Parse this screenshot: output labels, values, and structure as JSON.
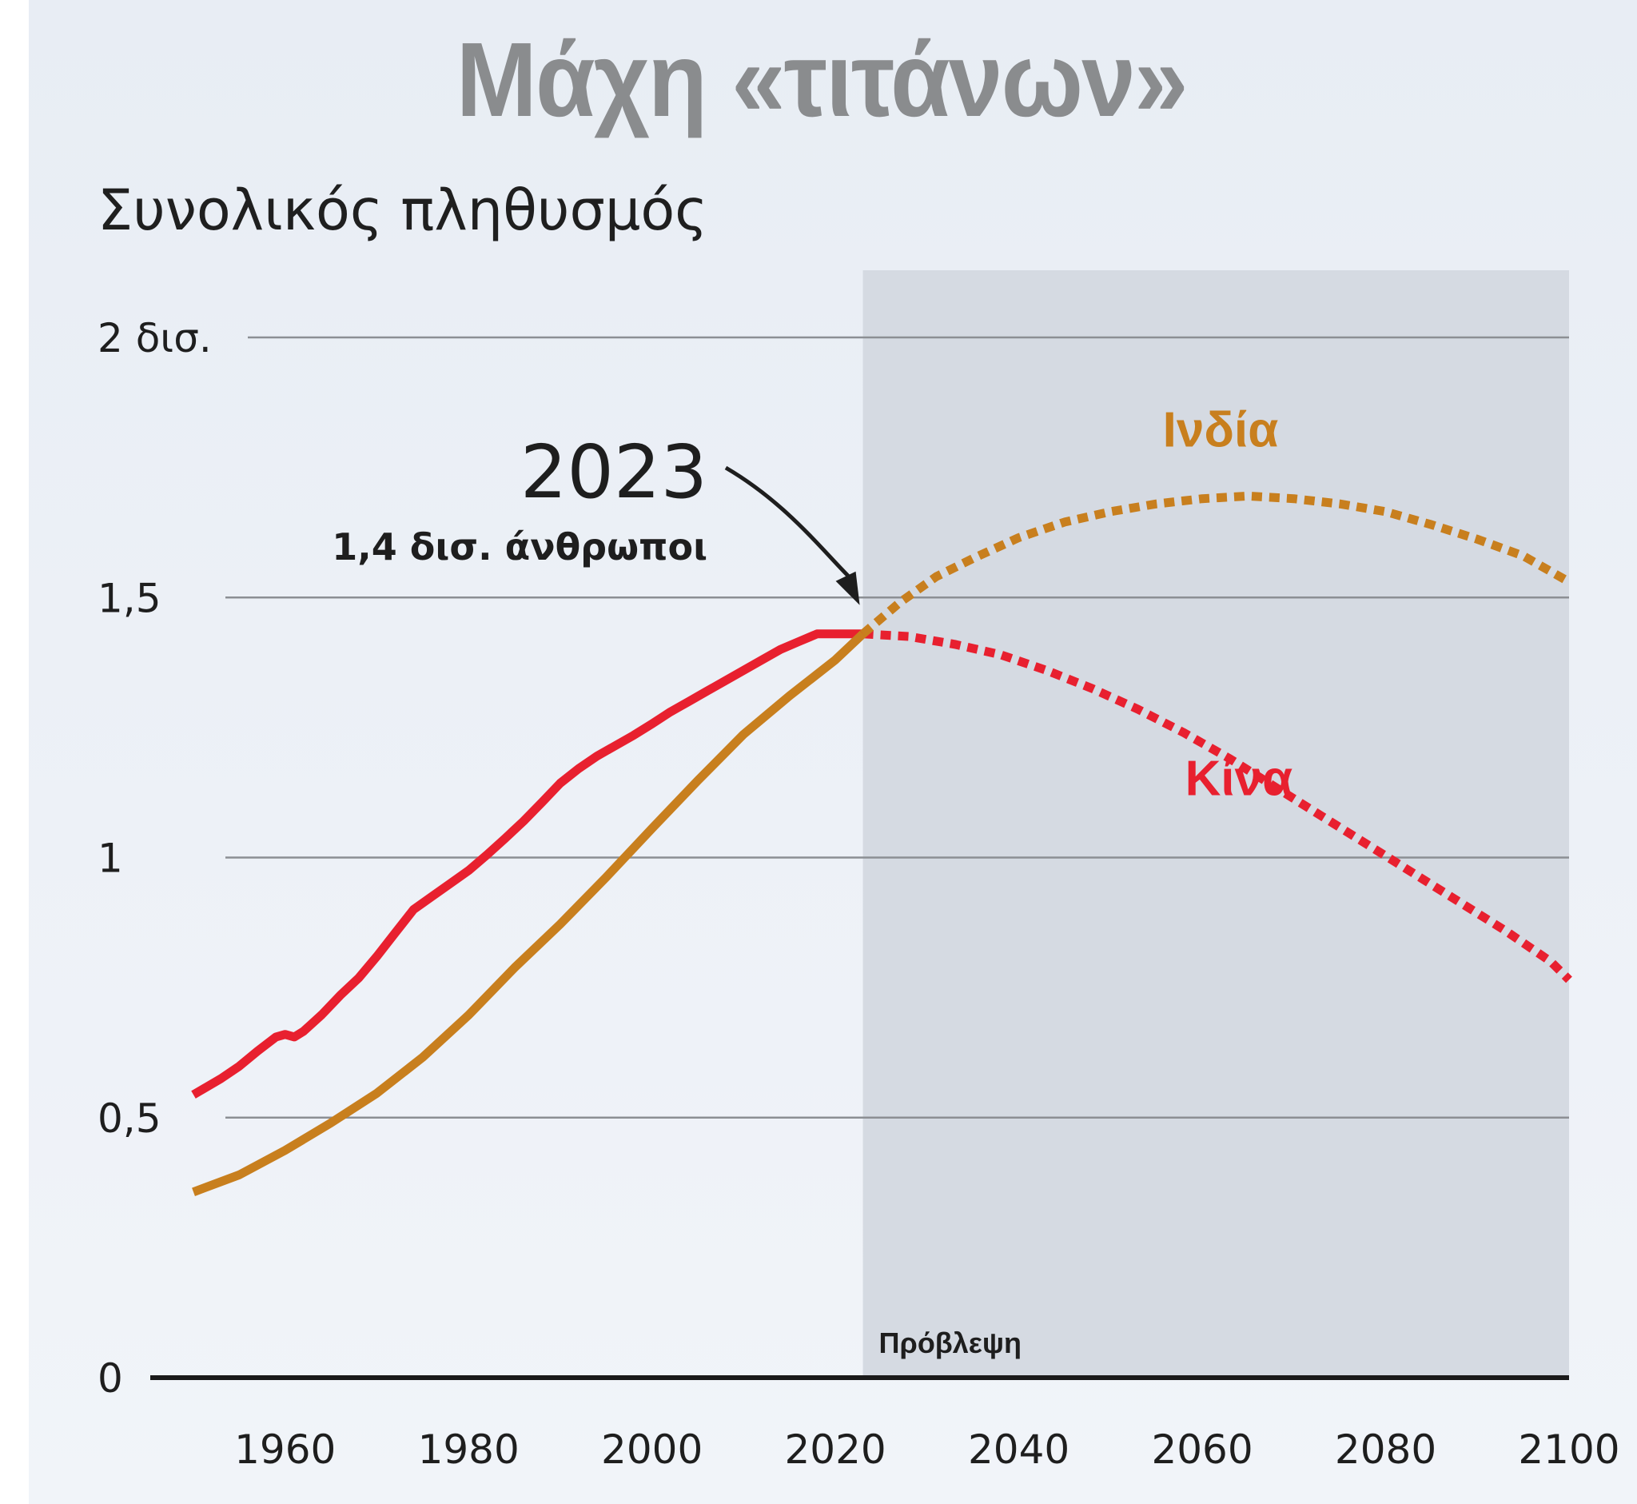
{
  "chart_data": {
    "type": "line",
    "title": "Μάχη «τιτάνων»",
    "subtitle": "Συνολικός πληθυσμός",
    "xlim": [
      1950,
      2100
    ],
    "ylim": [
      0,
      2
    ],
    "x_ticks": [
      1960,
      1980,
      2000,
      2020,
      2040,
      2060,
      2080,
      2100
    ],
    "y_ticks": [
      {
        "value": 0,
        "label": "0"
      },
      {
        "value": 0.5,
        "label": "0,5"
      },
      {
        "value": 1,
        "label": "1"
      },
      {
        "value": 1.5,
        "label": "1,5"
      },
      {
        "value": 2,
        "label": "2 δισ."
      }
    ],
    "forecast_start": 2023,
    "forecast_label": "Πρόβλεψη",
    "annotation": {
      "year_label": "2023",
      "text": "1,4 δισ. άνθρωποι",
      "x": 2023,
      "y": 1.43
    },
    "series": [
      {
        "name": "Κίνα",
        "color": "#e8202f",
        "historical": [
          [
            1950,
            0.544
          ],
          [
            1953,
            0.575
          ],
          [
            1955,
            0.599
          ],
          [
            1957,
            0.628
          ],
          [
            1959,
            0.655
          ],
          [
            1960,
            0.66
          ],
          [
            1961,
            0.655
          ],
          [
            1962,
            0.666
          ],
          [
            1964,
            0.698
          ],
          [
            1966,
            0.735
          ],
          [
            1968,
            0.768
          ],
          [
            1970,
            0.81
          ],
          [
            1972,
            0.855
          ],
          [
            1974,
            0.9
          ],
          [
            1976,
            0.925
          ],
          [
            1978,
            0.95
          ],
          [
            1980,
            0.975
          ],
          [
            1982,
            1.005
          ],
          [
            1984,
            1.037
          ],
          [
            1986,
            1.07
          ],
          [
            1988,
            1.106
          ],
          [
            1990,
            1.143
          ],
          [
            1992,
            1.171
          ],
          [
            1994,
            1.195
          ],
          [
            1996,
            1.215
          ],
          [
            1998,
            1.235
          ],
          [
            2000,
            1.257
          ],
          [
            2002,
            1.28
          ],
          [
            2004,
            1.3
          ],
          [
            2006,
            1.32
          ],
          [
            2008,
            1.34
          ],
          [
            2010,
            1.36
          ],
          [
            2012,
            1.38
          ],
          [
            2014,
            1.4
          ],
          [
            2016,
            1.415
          ],
          [
            2018,
            1.43
          ],
          [
            2020,
            1.43
          ],
          [
            2023,
            1.43
          ]
        ],
        "forecast": [
          [
            2023,
            1.43
          ],
          [
            2028,
            1.425
          ],
          [
            2033,
            1.41
          ],
          [
            2038,
            1.39
          ],
          [
            2043,
            1.36
          ],
          [
            2048,
            1.325
          ],
          [
            2053,
            1.285
          ],
          [
            2058,
            1.24
          ],
          [
            2063,
            1.19
          ],
          [
            2068,
            1.135
          ],
          [
            2073,
            1.08
          ],
          [
            2078,
            1.025
          ],
          [
            2083,
            0.97
          ],
          [
            2088,
            0.915
          ],
          [
            2093,
            0.86
          ],
          [
            2098,
            0.8
          ],
          [
            2100,
            0.765
          ]
        ],
        "label": {
          "text": "Κίνα",
          "x": 2064,
          "y": 1.12
        }
      },
      {
        "name": "Ινδία",
        "color": "#c87f1e",
        "historical": [
          [
            1950,
            0.357
          ],
          [
            1955,
            0.39
          ],
          [
            1960,
            0.437
          ],
          [
            1965,
            0.49
          ],
          [
            1970,
            0.547
          ],
          [
            1975,
            0.616
          ],
          [
            1980,
            0.697
          ],
          [
            1985,
            0.788
          ],
          [
            1990,
            0.872
          ],
          [
            1995,
            0.962
          ],
          [
            2000,
            1.056
          ],
          [
            2005,
            1.148
          ],
          [
            2010,
            1.237
          ],
          [
            2015,
            1.311
          ],
          [
            2020,
            1.38
          ],
          [
            2023,
            1.43
          ]
        ],
        "forecast": [
          [
            2023,
            1.43
          ],
          [
            2027,
            1.49
          ],
          [
            2031,
            1.54
          ],
          [
            2035,
            1.575
          ],
          [
            2040,
            1.615
          ],
          [
            2045,
            1.645
          ],
          [
            2050,
            1.665
          ],
          [
            2055,
            1.68
          ],
          [
            2060,
            1.69
          ],
          [
            2065,
            1.695
          ],
          [
            2070,
            1.69
          ],
          [
            2075,
            1.68
          ],
          [
            2080,
            1.665
          ],
          [
            2085,
            1.64
          ],
          [
            2090,
            1.612
          ],
          [
            2095,
            1.58
          ],
          [
            2100,
            1.53
          ]
        ],
        "label": {
          "text": "Ινδία",
          "x": 2062,
          "y": 1.79
        }
      }
    ]
  }
}
